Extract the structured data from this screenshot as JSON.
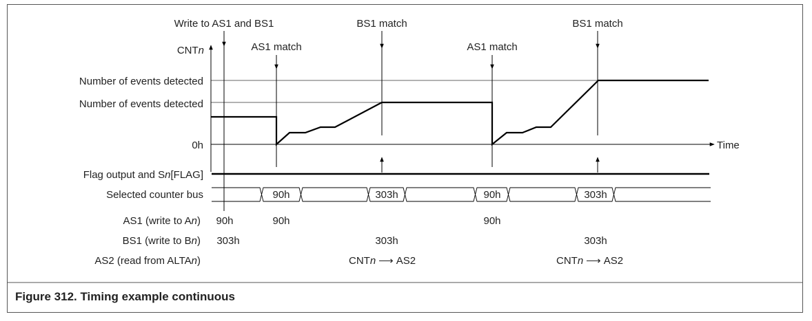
{
  "caption": "Figure 312.  Timing example continuous",
  "axis": {
    "y_label": "CNT",
    "y_label_italic": "n",
    "x_label": "Time",
    "zero_label": "0h"
  },
  "level_labels": [
    "Number of events detected",
    "Number of events detected"
  ],
  "events": {
    "write": "Write to AS1 and BS1",
    "as1_match": "AS1 match",
    "bs1_match": "BS1 match"
  },
  "rows": {
    "flag": {
      "pre": "Flag output and S",
      "italic": "n",
      "post": "[FLAG]"
    },
    "bus": {
      "label": "Selected counter bus",
      "values": [
        "90h",
        "303h",
        "90h",
        "303h"
      ]
    },
    "as1": {
      "pre": "AS1 (write to A",
      "italic": "n",
      "post": ")",
      "values": [
        "90h",
        "90h",
        "90h"
      ]
    },
    "bs1": {
      "pre": "BS1 (write to B",
      "italic": "n",
      "post": ")",
      "values": [
        "303h",
        "303h",
        "303h"
      ]
    },
    "as2": {
      "pre": "AS2 (read from ALTA",
      "italic": "n",
      "post": ")"
    }
  },
  "transfer": {
    "from": "CNT",
    "from_italic": "n",
    "arrow": "⟶",
    "to": "AS2"
  }
}
